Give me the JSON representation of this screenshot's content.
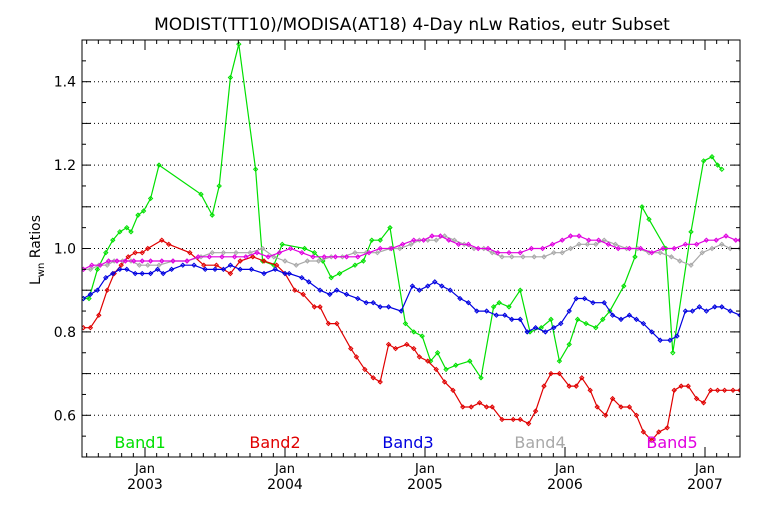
{
  "chart_data": {
    "type": "line",
    "title": "MODIST(TT10)/MODISA(AT18) 4-Day nLw Ratios, eutr Subset",
    "ylabel": "L",
    "ylabel_sub": "wn",
    "ylabel_rest": " Ratios",
    "ylim": [
      0.5,
      1.5
    ],
    "yticks": [
      0.6,
      0.8,
      1.0,
      1.2,
      1.4
    ],
    "ytick_labels": [
      "0.6",
      "0.8",
      "1.0",
      "1.2",
      "1.4"
    ],
    "xlim": [
      2002.55,
      2007.25
    ],
    "xticks": [
      {
        "x": 2003,
        "month": "Jan",
        "year": "2003"
      },
      {
        "x": 2004,
        "month": "Jan",
        "year": "2004"
      },
      {
        "x": 2005,
        "month": "Jan",
        "year": "2005"
      },
      {
        "x": 2006,
        "month": "Jan",
        "year": "2006"
      },
      {
        "x": 2007,
        "month": "Jan",
        "year": "2007"
      }
    ],
    "grid": "horizontal-dotted",
    "legend": "bottom",
    "series": [
      {
        "name": "Band1",
        "color": "#00e000",
        "x": [
          2002.56,
          2002.6,
          2002.66,
          2002.72,
          2002.77,
          2002.82,
          2002.87,
          2002.9,
          2002.95,
          2002.99,
          2003.04,
          2003.1,
          2003.4,
          2003.48,
          2003.53,
          2003.61,
          2003.67,
          2003.79,
          2003.84,
          2003.92,
          2003.98,
          2004.14,
          2004.21,
          2004.27,
          2004.33,
          2004.39,
          2004.5,
          2004.56,
          2004.62,
          2004.68,
          2004.75,
          2004.86,
          2004.92,
          2004.98,
          2005.04,
          2005.09,
          2005.15,
          2005.22,
          2005.32,
          2005.4,
          2005.49,
          2005.53,
          2005.6,
          2005.68,
          2005.75,
          2005.83,
          2005.9,
          2005.96,
          2006.03,
          2006.09,
          2006.15,
          2006.22,
          2006.27,
          2006.32,
          2006.42,
          2006.5,
          2006.55,
          2006.6,
          2006.72,
          2006.77,
          2006.9,
          2006.99,
          2007.05,
          2007.09,
          2007.12
        ],
        "y": [
          0.88,
          0.88,
          0.95,
          0.99,
          1.02,
          1.04,
          1.05,
          1.04,
          1.08,
          1.09,
          1.12,
          1.2,
          1.13,
          1.08,
          1.15,
          1.41,
          1.49,
          1.19,
          0.97,
          0.96,
          1.01,
          1.0,
          0.99,
          0.97,
          0.93,
          0.94,
          0.96,
          0.97,
          1.02,
          1.02,
          1.05,
          0.82,
          0.8,
          0.79,
          0.73,
          0.75,
          0.71,
          0.72,
          0.73,
          0.69,
          0.86,
          0.87,
          0.86,
          0.9,
          0.8,
          0.81,
          0.83,
          0.73,
          0.77,
          0.83,
          0.82,
          0.81,
          0.83,
          0.85,
          0.91,
          0.98,
          1.1,
          1.07,
          1.0,
          0.75,
          1.04,
          1.21,
          1.22,
          1.2,
          1.19
        ]
      },
      {
        "name": "Band2",
        "color": "#e00000",
        "x": [
          2002.56,
          2002.61,
          2002.67,
          2002.73,
          2002.78,
          2002.83,
          2002.88,
          2002.93,
          2002.98,
          2003.02,
          2003.12,
          2003.17,
          2003.32,
          2003.42,
          2003.51,
          2003.61,
          2003.68,
          2003.77,
          2003.85,
          2003.94,
          2004.0,
          2004.07,
          2004.13,
          2004.21,
          2004.25,
          2004.31,
          2004.37,
          2004.47,
          2004.51,
          2004.57,
          2004.63,
          2004.68,
          2004.74,
          2004.79,
          2004.87,
          2004.92,
          2004.96,
          2005.02,
          2005.08,
          2005.14,
          2005.2,
          2005.27,
          2005.33,
          2005.39,
          2005.44,
          2005.48,
          2005.55,
          2005.63,
          2005.68,
          2005.74,
          2005.79,
          2005.85,
          2005.9,
          2005.96,
          2006.03,
          2006.08,
          2006.12,
          2006.18,
          2006.23,
          2006.29,
          2006.34,
          2006.4,
          2006.46,
          2006.51,
          2006.56,
          2006.62,
          2006.67,
          2006.73,
          2006.78,
          2006.83,
          2006.88,
          2006.94,
          2006.99,
          2007.04,
          2007.09,
          2007.14,
          2007.2,
          2007.25
        ],
        "y": [
          0.81,
          0.81,
          0.84,
          0.9,
          0.94,
          0.96,
          0.98,
          0.99,
          0.99,
          1.0,
          1.02,
          1.01,
          0.99,
          0.96,
          0.96,
          0.94,
          0.97,
          0.98,
          0.97,
          0.96,
          0.94,
          0.9,
          0.89,
          0.86,
          0.86,
          0.82,
          0.82,
          0.76,
          0.74,
          0.71,
          0.69,
          0.68,
          0.77,
          0.76,
          0.77,
          0.76,
          0.74,
          0.73,
          0.71,
          0.68,
          0.66,
          0.62,
          0.62,
          0.63,
          0.62,
          0.62,
          0.59,
          0.59,
          0.59,
          0.58,
          0.61,
          0.67,
          0.7,
          0.7,
          0.67,
          0.67,
          0.69,
          0.66,
          0.62,
          0.6,
          0.64,
          0.62,
          0.62,
          0.6,
          0.56,
          0.54,
          0.56,
          0.57,
          0.66,
          0.67,
          0.67,
          0.64,
          0.63,
          0.66,
          0.66,
          0.66,
          0.66,
          0.66
        ]
      },
      {
        "name": "Band3",
        "color": "#0000e0",
        "x": [
          2002.56,
          2002.61,
          2002.66,
          2002.72,
          2002.77,
          2002.82,
          2002.87,
          2002.93,
          2002.98,
          2003.04,
          2003.09,
          2003.13,
          2003.19,
          2003.27,
          2003.35,
          2003.43,
          2003.5,
          2003.56,
          2003.61,
          2003.68,
          2003.76,
          2003.85,
          2003.93,
          2004.0,
          2004.03,
          2004.12,
          2004.17,
          2004.25,
          2004.32,
          2004.37,
          2004.44,
          2004.52,
          2004.58,
          2004.63,
          2004.68,
          2004.74,
          2004.83,
          2004.91,
          2004.96,
          2005.02,
          2005.07,
          2005.12,
          2005.18,
          2005.25,
          2005.31,
          2005.37,
          2005.44,
          2005.51,
          2005.57,
          2005.62,
          2005.68,
          2005.73,
          2005.79,
          2005.86,
          2005.92,
          2005.97,
          2006.03,
          2006.08,
          2006.14,
          2006.2,
          2006.28,
          2006.34,
          2006.4,
          2006.46,
          2006.51,
          2006.56,
          2006.62,
          2006.68,
          2006.75,
          2006.8,
          2006.86,
          2006.91,
          2006.96,
          2007.01,
          2007.07,
          2007.12,
          2007.18,
          2007.25
        ],
        "y": [
          0.88,
          0.89,
          0.9,
          0.93,
          0.94,
          0.95,
          0.95,
          0.94,
          0.94,
          0.94,
          0.95,
          0.94,
          0.95,
          0.96,
          0.96,
          0.95,
          0.95,
          0.95,
          0.96,
          0.95,
          0.95,
          0.94,
          0.95,
          0.94,
          0.94,
          0.93,
          0.92,
          0.9,
          0.89,
          0.9,
          0.89,
          0.88,
          0.87,
          0.87,
          0.86,
          0.86,
          0.85,
          0.91,
          0.9,
          0.91,
          0.92,
          0.91,
          0.9,
          0.88,
          0.87,
          0.85,
          0.85,
          0.84,
          0.84,
          0.83,
          0.83,
          0.8,
          0.81,
          0.8,
          0.81,
          0.82,
          0.85,
          0.88,
          0.88,
          0.87,
          0.87,
          0.84,
          0.83,
          0.84,
          0.83,
          0.82,
          0.8,
          0.78,
          0.78,
          0.79,
          0.85,
          0.85,
          0.86,
          0.85,
          0.86,
          0.86,
          0.85,
          0.84
        ]
      },
      {
        "name": "Band4",
        "color": "#a8a8a8",
        "x": [
          2002.56,
          2002.61,
          2002.67,
          2002.73,
          2002.78,
          2002.84,
          2002.9,
          2002.96,
          2003.02,
          2003.1,
          2003.2,
          2003.3,
          2003.4,
          2003.48,
          2003.56,
          2003.65,
          2003.75,
          2003.84,
          2003.92,
          2004.0,
          2004.08,
          2004.16,
          2004.24,
          2004.33,
          2004.41,
          2004.5,
          2004.58,
          2004.66,
          2004.75,
          2004.82,
          2004.9,
          2004.96,
          2005.02,
          2005.08,
          2005.14,
          2005.21,
          2005.28,
          2005.35,
          2005.42,
          2005.48,
          2005.55,
          2005.62,
          2005.7,
          2005.78,
          2005.85,
          2005.92,
          2005.98,
          2006.04,
          2006.1,
          2006.16,
          2006.22,
          2006.28,
          2006.36,
          2006.44,
          2006.52,
          2006.6,
          2006.68,
          2006.76,
          2006.82,
          2006.9,
          2006.98,
          2007.05,
          2007.12,
          2007.18,
          2007.25
        ],
        "y": [
          0.95,
          0.95,
          0.96,
          0.96,
          0.97,
          0.97,
          0.97,
          0.96,
          0.96,
          0.96,
          0.97,
          0.97,
          0.98,
          0.99,
          0.99,
          0.99,
          0.99,
          1.0,
          0.98,
          0.97,
          0.96,
          0.97,
          0.97,
          0.98,
          0.98,
          0.99,
          0.99,
          0.99,
          1.0,
          1.0,
          1.01,
          1.02,
          1.02,
          1.02,
          1.03,
          1.02,
          1.01,
          1.0,
          1.0,
          0.99,
          0.98,
          0.98,
          0.98,
          0.98,
          0.98,
          0.99,
          0.99,
          1.0,
          1.01,
          1.01,
          1.01,
          1.02,
          1.01,
          1.0,
          1.0,
          0.99,
          0.99,
          0.98,
          0.97,
          0.96,
          0.99,
          1.0,
          1.01,
          1.0,
          1.0
        ]
      },
      {
        "name": "Band5",
        "color": "#e000e0",
        "x": [
          2002.56,
          2002.62,
          2002.68,
          2002.74,
          2002.8,
          2002.86,
          2002.92,
          2002.98,
          2003.04,
          2003.12,
          2003.2,
          2003.3,
          2003.38,
          2003.46,
          2003.55,
          2003.64,
          2003.72,
          2003.8,
          2003.88,
          2003.96,
          2004.04,
          2004.12,
          2004.2,
          2004.28,
          2004.36,
          2004.44,
          2004.52,
          2004.6,
          2004.68,
          2004.76,
          2004.84,
          2004.92,
          2004.99,
          2005.05,
          2005.11,
          2005.17,
          2005.24,
          2005.31,
          2005.38,
          2005.45,
          2005.52,
          2005.6,
          2005.68,
          2005.76,
          2005.84,
          2005.91,
          2005.98,
          2006.04,
          2006.1,
          2006.17,
          2006.24,
          2006.31,
          2006.38,
          2006.46,
          2006.54,
          2006.62,
          2006.7,
          2006.78,
          2006.86,
          2006.94,
          2007.01,
          2007.08,
          2007.15,
          2007.22,
          2007.25
        ],
        "y": [
          0.95,
          0.96,
          0.96,
          0.97,
          0.97,
          0.97,
          0.97,
          0.97,
          0.97,
          0.97,
          0.97,
          0.97,
          0.98,
          0.98,
          0.98,
          0.98,
          0.98,
          0.99,
          0.98,
          0.99,
          1.0,
          0.99,
          0.98,
          0.98,
          0.98,
          0.98,
          0.98,
          0.99,
          1.0,
          1.0,
          1.01,
          1.02,
          1.02,
          1.03,
          1.03,
          1.02,
          1.01,
          1.01,
          1.0,
          1.0,
          0.99,
          0.99,
          0.99,
          1.0,
          1.0,
          1.01,
          1.02,
          1.03,
          1.03,
          1.02,
          1.02,
          1.01,
          1.0,
          1.0,
          1.0,
          0.99,
          1.0,
          1.0,
          1.01,
          1.01,
          1.02,
          1.02,
          1.03,
          1.02,
          1.02
        ]
      }
    ]
  }
}
